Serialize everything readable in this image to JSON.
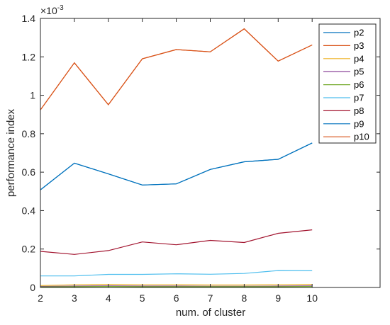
{
  "chart_data": {
    "type": "line",
    "title": "",
    "xlabel": "num. of cluster",
    "ylabel": "performance index",
    "exponent_label": "×10",
    "exponent_power": "-3",
    "x": [
      2,
      3,
      4,
      5,
      6,
      7,
      8,
      9,
      10
    ],
    "xlim": [
      2,
      12
    ],
    "ylim": [
      0,
      1.4
    ],
    "xticks": [
      "2",
      "3",
      "4",
      "5",
      "6",
      "7",
      "8",
      "9",
      "10"
    ],
    "yticks": [
      "0",
      "0.2",
      "0.4",
      "0.6",
      "0.8",
      "1",
      "1.2",
      "1.4"
    ],
    "grid": false,
    "legend_position": "top-right",
    "series": [
      {
        "name": "p2",
        "color": "#0072BD",
        "values": [
          0.508,
          0.647,
          0.591,
          0.533,
          0.539,
          0.614,
          0.654,
          0.667,
          0.752
        ]
      },
      {
        "name": "p3",
        "color": "#D95319",
        "values": [
          0.924,
          1.169,
          0.951,
          1.19,
          1.238,
          1.226,
          1.346,
          1.178,
          1.262
        ]
      },
      {
        "name": "p4",
        "color": "#EDB120",
        "values": [
          0.01,
          0.014,
          0.016,
          0.014,
          0.014,
          0.013,
          0.013,
          0.014,
          0.016
        ]
      },
      {
        "name": "p5",
        "color": "#7E2F8E",
        "values": [
          0.005,
          0.007,
          0.008,
          0.007,
          0.007,
          0.006,
          0.006,
          0.007,
          0.008
        ]
      },
      {
        "name": "p6",
        "color": "#77AC30",
        "values": [
          0.003,
          0.004,
          0.005,
          0.004,
          0.004,
          0.004,
          0.004,
          0.004,
          0.005
        ]
      },
      {
        "name": "p7",
        "color": "#4DBEEE",
        "values": [
          0.06,
          0.06,
          0.068,
          0.068,
          0.071,
          0.069,
          0.073,
          0.088,
          0.087
        ]
      },
      {
        "name": "p8",
        "color": "#A2142F",
        "values": [
          0.188,
          0.172,
          0.192,
          0.237,
          0.222,
          0.245,
          0.234,
          0.282,
          0.3
        ]
      },
      {
        "name": "p9",
        "color": "#0072BD",
        "values": [
          0.508,
          0.647,
          0.591,
          0.533,
          0.539,
          0.614,
          0.654,
          0.667,
          0.752
        ]
      },
      {
        "name": "p10",
        "color": "#D95319",
        "values": [
          0.924,
          1.169,
          0.951,
          1.19,
          1.238,
          1.226,
          1.346,
          1.178,
          1.262
        ]
      }
    ]
  }
}
